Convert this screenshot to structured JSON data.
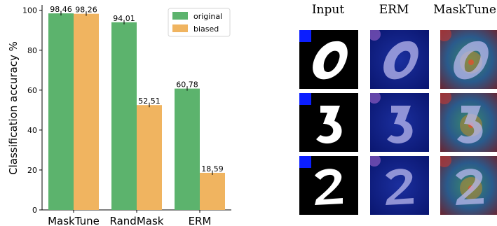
{
  "chart_data": {
    "type": "bar",
    "categories": [
      "MaskTune",
      "RandMask",
      "ERM"
    ],
    "series": [
      {
        "name": "original",
        "values": [
          98.46,
          94.01,
          60.78
        ],
        "color": "#5cb36d"
      },
      {
        "name": "biased",
        "values": [
          98.26,
          52.51,
          18.59
        ],
        "color": "#f0b460"
      }
    ],
    "data_labels": [
      [
        "98.46",
        "98.26"
      ],
      [
        "94.01",
        "52.51"
      ],
      [
        "60.78",
        "18.59"
      ]
    ],
    "ylabel": "Classification accuracy %",
    "xlabel": "",
    "ylim": [
      0,
      102
    ],
    "yticks": [
      0,
      20,
      40,
      60,
      80,
      100
    ],
    "legend_position": "top-right",
    "grid": false
  },
  "saliency_panel": {
    "columns": [
      "Input",
      "ERM",
      "MaskTune"
    ],
    "digits": [
      "0",
      "3",
      "2"
    ]
  }
}
